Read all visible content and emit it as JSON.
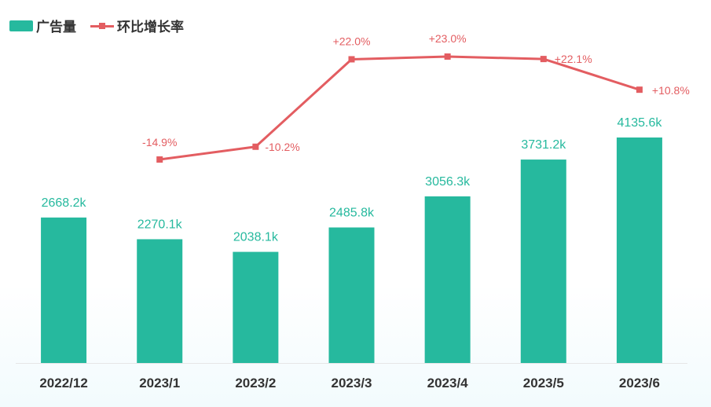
{
  "legend": {
    "bar_label": "广告量",
    "line_label": "环比增长率"
  },
  "colors": {
    "bar": "#26b99e",
    "line": "#e35d61",
    "bar_label": "#26b99e",
    "rate_label": "#e35d61",
    "axis": "#e6e6e6"
  },
  "chart_data": {
    "type": "bar",
    "categories": [
      "2022/12",
      "2023/1",
      "2023/2",
      "2023/3",
      "2023/4",
      "2023/5",
      "2023/6"
    ],
    "series": [
      {
        "name": "广告量",
        "type": "bar",
        "values": [
          2668.2,
          2270.1,
          2038.1,
          2485.8,
          3056.3,
          3731.2,
          4135.6
        ],
        "labels": [
          "2668.2k",
          "2270.1k",
          "2038.1k",
          "2485.8k",
          "3056.3k",
          "3731.2k",
          "4135.6k"
        ]
      },
      {
        "name": "环比增长率",
        "type": "line",
        "values": [
          null,
          -14.9,
          -10.2,
          22.0,
          23.0,
          22.1,
          10.8
        ],
        "labels": [
          "",
          "-14.9%",
          "-10.2%",
          "+22.0%",
          "+23.0%",
          "+22.1%",
          "+10.8%"
        ]
      }
    ],
    "title": "",
    "xlabel": "",
    "ylabel": "",
    "legend_position": "top-left",
    "grid": false
  }
}
